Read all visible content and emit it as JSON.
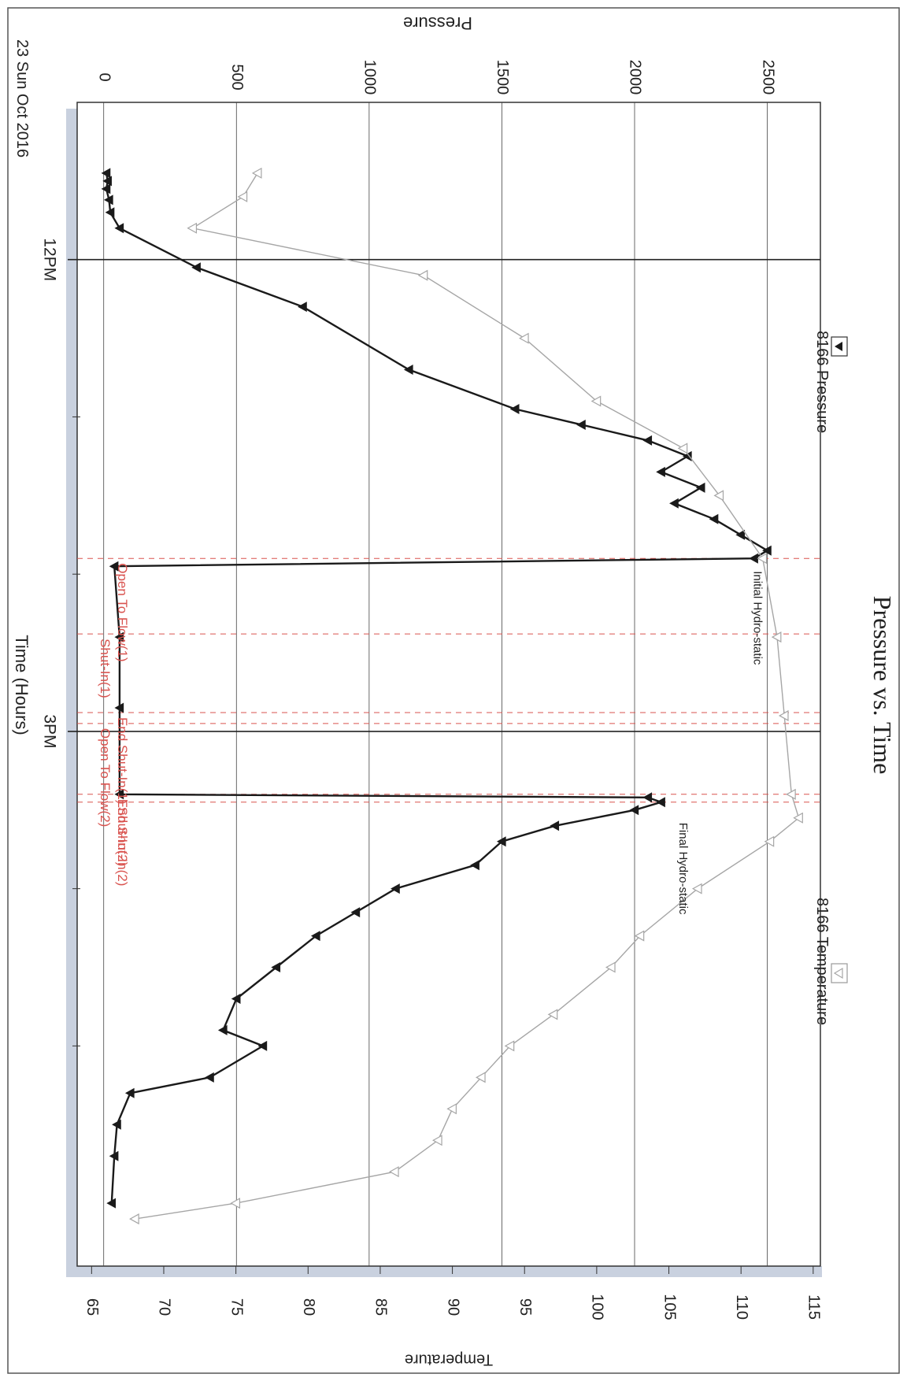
{
  "chart_data": {
    "type": "line",
    "title": "Pressure vs. Time",
    "date_label": "23 Sun Oct 2016",
    "x_axis": {
      "label": "Time (Hours)",
      "unit": "hours",
      "range": [
        11.0,
        18.4
      ],
      "ticks": [
        {
          "value": 12.0,
          "label": "12PM"
        },
        {
          "value": 13.0,
          "label": ""
        },
        {
          "value": 14.0,
          "label": ""
        },
        {
          "value": 15.0,
          "label": "3PM"
        },
        {
          "value": 16.0,
          "label": ""
        },
        {
          "value": 17.0,
          "label": ""
        }
      ]
    },
    "pressure_axis": {
      "label": "Pressure",
      "range": [
        -100,
        2700
      ],
      "ticks": [
        {
          "value": 0,
          "label": "0"
        },
        {
          "value": 500,
          "label": "500"
        },
        {
          "value": 1000,
          "label": "1000"
        },
        {
          "value": 1500,
          "label": "1500"
        },
        {
          "value": 2000,
          "label": "2000"
        },
        {
          "value": 2500,
          "label": "2500"
        }
      ]
    },
    "temperature_axis": {
      "label": "Temperature",
      "range": [
        64,
        115.5
      ],
      "ticks": [
        {
          "value": 65,
          "label": "65"
        },
        {
          "value": 70,
          "label": "70"
        },
        {
          "value": 75,
          "label": "75"
        },
        {
          "value": 80,
          "label": "80"
        },
        {
          "value": 85,
          "label": "85"
        },
        {
          "value": 90,
          "label": "90"
        },
        {
          "value": 95,
          "label": "95"
        },
        {
          "value": 100,
          "label": "100"
        },
        {
          "value": 105,
          "label": "105"
        },
        {
          "value": 110,
          "label": "110"
        },
        {
          "value": 115,
          "label": "115"
        }
      ]
    },
    "grid": true,
    "legend": [
      {
        "name": "8166 Pressure",
        "marker": "filled-triangle",
        "color": "#1a1a1a",
        "position": "top"
      },
      {
        "name": "8166 Temperature",
        "marker": "open-triangle",
        "color": "#a6a6a6",
        "position": "top"
      }
    ],
    "series": [
      {
        "name": "8166 Pressure",
        "axis": "pressure",
        "color": "#1a1a1a",
        "marker": "filled-triangle",
        "x": [
          11.45,
          11.5,
          11.55,
          11.62,
          11.7,
          11.8,
          12.05,
          12.3,
          12.7,
          12.95,
          13.05,
          13.15,
          13.25,
          13.35,
          13.45,
          13.55,
          13.65,
          13.75,
          13.85,
          13.9,
          13.95,
          14.4,
          14.85,
          15.4,
          15.42,
          15.45,
          15.5,
          15.6,
          15.7,
          15.85,
          16.0,
          16.15,
          16.3,
          16.5,
          16.7,
          16.9,
          17.0,
          17.2,
          17.3,
          17.5,
          17.7,
          18.0
        ],
        "y": [
          10,
          15,
          10,
          20,
          25,
          60,
          350,
          750,
          1150,
          1550,
          1800,
          2050,
          2200,
          2100,
          2250,
          2150,
          2300,
          2400,
          2500,
          2450,
          40,
          60,
          60,
          60,
          2050,
          2100,
          2000,
          1700,
          1500,
          1400,
          1100,
          950,
          800,
          650,
          500,
          450,
          600,
          400,
          100,
          50,
          40,
          30
        ]
      },
      {
        "name": "8166 Temperature",
        "axis": "temperature",
        "color": "#a6a6a6",
        "marker": "open-triangle",
        "x": [
          11.45,
          11.6,
          11.8,
          12.1,
          12.5,
          12.9,
          13.2,
          13.5,
          13.9,
          14.4,
          14.9,
          15.4,
          15.55,
          15.7,
          16.0,
          16.3,
          16.5,
          16.8,
          17.0,
          17.2,
          17.4,
          17.6,
          17.8,
          18.0,
          18.1
        ],
        "y": [
          76.5,
          75.5,
          72,
          88,
          95,
          100,
          106,
          108.5,
          111.5,
          112.5,
          113,
          113.5,
          114,
          112,
          107,
          103,
          101,
          97,
          94,
          92,
          90,
          89,
          86,
          75,
          68
        ]
      }
    ],
    "event_markers": [
      {
        "x": 13.9,
        "label": "Open To Flow(1)",
        "style": "dashed"
      },
      {
        "x": 14.38,
        "label": "Shut-In(1)",
        "style": "dashed"
      },
      {
        "x": 14.88,
        "label": "End Shut-In(1)",
        "style": "dashed"
      },
      {
        "x": 14.95,
        "label": "Open To Flow(2)",
        "style": "dashed"
      },
      {
        "x": 15.45,
        "label": "Shut-In(2)",
        "style": "dashed"
      },
      {
        "x": 15.4,
        "label": "End Shut-In(2)",
        "style": "dashed"
      }
    ],
    "annotations": [
      {
        "label": "Initial Hydro-static",
        "x": 13.95,
        "y": 2420
      },
      {
        "label": "Final Hydro-static",
        "x": 15.55,
        "y": 2140
      }
    ],
    "colors": {
      "pressure": "#1a1a1a",
      "temperature": "#a6a6a6",
      "events": "#d9534f",
      "grid": "#444444",
      "axis_band": "#c9d1df"
    }
  }
}
